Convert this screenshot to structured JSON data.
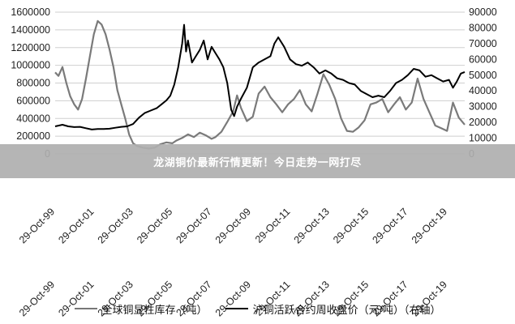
{
  "banner": {
    "title": "龙湖铜价最新行情更新！今日走势一网打尽"
  },
  "legend": {
    "series1_label": "全球铜显性库存（吨）",
    "series2_label": "沪铜活跃合约周收盘价（元/吨）（右轴）"
  },
  "colors": {
    "inventory": "#7a7a7a",
    "price": "#000000",
    "grid": "#cfcfcf",
    "banner": "#afafaf"
  },
  "chart_data": {
    "type": "line",
    "x_tick_labels": [
      "29-Oct-99",
      "29-Oct-01",
      "29-Oct-03",
      "29-Oct-05",
      "29-Oct-07",
      "29-Oct-09",
      "29-Oct-11",
      "29-Oct-13",
      "29-Oct-15",
      "29-Oct-17",
      "29-Oct-19"
    ],
    "x_range": [
      1999.83,
      2020.7
    ],
    "left_axis": {
      "ticks": [
        "0",
        "200000",
        "400000",
        "600000",
        "800000",
        "1000000",
        "1200000",
        "1400000",
        "1600000"
      ],
      "range": [
        0,
        1600000
      ]
    },
    "right_axis": {
      "ticks": [
        "0",
        "10000",
        "20000",
        "30000",
        "40000",
        "50000",
        "60000",
        "70000",
        "80000",
        "90000"
      ],
      "range": [
        0,
        90000
      ]
    },
    "grid": true,
    "legend_position": "bottom",
    "series": [
      {
        "name": "全球铜显性库存（吨）",
        "axis": "left",
        "x": [
          1999.83,
          2000.0,
          2000.2,
          2000.4,
          2000.6,
          2000.8,
          2001.0,
          2001.2,
          2001.4,
          2001.6,
          2001.8,
          2002.0,
          2002.2,
          2002.4,
          2002.6,
          2002.8,
          2003.0,
          2003.2,
          2003.4,
          2003.6,
          2003.8,
          2004.0,
          2004.3,
          2004.6,
          2004.9,
          2005.2,
          2005.5,
          2005.8,
          2006.0,
          2006.3,
          2006.6,
          2006.9,
          2007.2,
          2007.5,
          2007.8,
          2008.0,
          2008.3,
          2008.6,
          2008.9,
          2009.1,
          2009.3,
          2009.6,
          2009.9,
          2010.2,
          2010.5,
          2010.8,
          2011.1,
          2011.4,
          2011.7,
          2012.0,
          2012.3,
          2012.6,
          2012.9,
          2013.2,
          2013.5,
          2013.8,
          2014.1,
          2014.4,
          2014.7,
          2015.0,
          2015.3,
          2015.6,
          2015.9,
          2016.2,
          2016.5,
          2016.8,
          2017.1,
          2017.4,
          2017.7,
          2018.0,
          2018.3,
          2018.6,
          2018.9,
          2019.2,
          2019.5,
          2019.8,
          2020.1,
          2020.4,
          2020.7
        ],
        "values": [
          920000,
          880000,
          980000,
          800000,
          650000,
          560000,
          500000,
          620000,
          850000,
          1100000,
          1350000,
          1500000,
          1460000,
          1350000,
          1180000,
          980000,
          720000,
          560000,
          400000,
          220000,
          120000,
          90000,
          70000,
          60000,
          70000,
          110000,
          130000,
          120000,
          150000,
          180000,
          220000,
          190000,
          240000,
          210000,
          170000,
          190000,
          250000,
          360000,
          480000,
          660000,
          520000,
          370000,
          420000,
          680000,
          760000,
          640000,
          560000,
          470000,
          560000,
          620000,
          720000,
          560000,
          480000,
          680000,
          900000,
          780000,
          620000,
          400000,
          260000,
          250000,
          300000,
          380000,
          560000,
          580000,
          620000,
          470000,
          560000,
          640000,
          500000,
          580000,
          850000,
          620000,
          470000,
          320000,
          290000,
          260000,
          580000,
          410000,
          330000
        ]
      },
      {
        "name": "沪铜活跃合约周收盘价（元/吨）（右轴）",
        "axis": "right",
        "x": [
          1999.83,
          2000.2,
          2000.5,
          2000.8,
          2001.1,
          2001.4,
          2001.7,
          2002.0,
          2002.3,
          2002.6,
          2002.9,
          2003.2,
          2003.5,
          2003.8,
          2004.1,
          2004.4,
          2004.7,
          2005.0,
          2005.3,
          2005.5,
          2005.7,
          2005.9,
          2006.1,
          2006.3,
          2006.4,
          2006.5,
          2006.6,
          2006.8,
          2007.0,
          2007.2,
          2007.4,
          2007.6,
          2007.8,
          2008.0,
          2008.2,
          2008.4,
          2008.6,
          2008.8,
          2008.95,
          2009.1,
          2009.3,
          2009.6,
          2009.9,
          2010.2,
          2010.5,
          2010.8,
          2011.0,
          2011.2,
          2011.5,
          2011.8,
          2012.1,
          2012.4,
          2012.7,
          2013.0,
          2013.3,
          2013.6,
          2013.9,
          2014.2,
          2014.5,
          2014.8,
          2015.1,
          2015.4,
          2015.7,
          2016.0,
          2016.3,
          2016.6,
          2016.9,
          2017.2,
          2017.5,
          2017.8,
          2018.1,
          2018.4,
          2018.7,
          2019.0,
          2019.3,
          2019.6,
          2019.9,
          2020.1,
          2020.3,
          2020.5,
          2020.7
        ],
        "values": [
          17500,
          18500,
          17500,
          17000,
          17200,
          16300,
          15500,
          15800,
          15800,
          16000,
          16600,
          17200,
          17500,
          19000,
          23000,
          26000,
          27500,
          29000,
          32000,
          34000,
          37000,
          44000,
          55000,
          70000,
          82000,
          65000,
          72000,
          58000,
          62000,
          66000,
          72000,
          60000,
          68000,
          64000,
          60000,
          55000,
          45000,
          28000,
          24000,
          30000,
          35000,
          42000,
          55000,
          58000,
          60000,
          62000,
          70000,
          74000,
          68000,
          60000,
          57000,
          56000,
          58000,
          55000,
          51000,
          53000,
          51000,
          48000,
          47000,
          45000,
          44000,
          40000,
          38000,
          36000,
          37000,
          36000,
          40000,
          45000,
          47000,
          50000,
          54000,
          53000,
          49000,
          50000,
          48000,
          46000,
          47000,
          42000,
          46000,
          51000,
          52000
        ]
      }
    ]
  }
}
